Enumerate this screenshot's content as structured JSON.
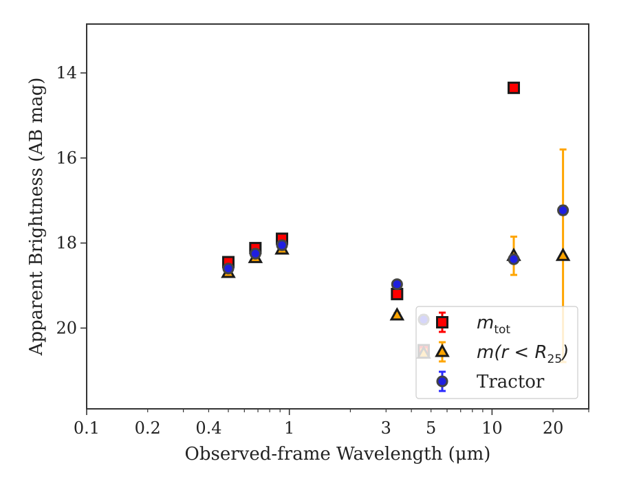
{
  "chart_data": {
    "type": "scatter",
    "xlabel": "Observed-frame Wavelength (μm)",
    "ylabel": "Apparent Brightness (AB mag)",
    "xscale": "log",
    "xlim": [
      0.1,
      30
    ],
    "ylim": [
      21.9,
      12.85
    ],
    "y_inverted": true,
    "x_ticks": [
      0.1,
      0.2,
      0.4,
      1,
      3,
      5,
      10,
      20
    ],
    "x_tick_labels": [
      "0.1",
      "0.2",
      "0.4",
      "1",
      "3",
      "5",
      "10",
      "20"
    ],
    "y_ticks": [
      14,
      16,
      18,
      20
    ],
    "y_tick_labels": [
      "14",
      "16",
      "18",
      "20"
    ],
    "grid": false,
    "legend_position": "lower-right",
    "series": [
      {
        "name": "m_tot",
        "legend_label": "m",
        "legend_sub": "tot",
        "marker": "square",
        "color": "#ff0000",
        "edge_color": "#1a1a1a",
        "error_color": "#ff0000",
        "x": [
          0.5,
          0.68,
          0.92,
          3.4,
          4.6,
          12.8
        ],
        "y": [
          18.45,
          18.12,
          17.9,
          19.2,
          20.52,
          14.35
        ],
        "yerr": [
          0.05,
          0.05,
          0.05,
          0.05,
          0.1,
          0.05
        ]
      },
      {
        "name": "m(r < R25)",
        "legend_label": "m(r < R",
        "legend_sub": "25",
        "legend_tail": ")",
        "marker": "triangle",
        "color": "#ffa500",
        "edge_color": "#1a1a1a",
        "error_color": "#ffa500",
        "x": [
          0.5,
          0.68,
          0.92,
          3.4,
          4.6,
          12.8,
          22.4
        ],
        "y": [
          18.7,
          18.35,
          18.15,
          19.7,
          20.6,
          18.3,
          18.3
        ],
        "yerr": [
          0.05,
          0.05,
          0.05,
          0.05,
          0.1,
          0.45,
          2.5
        ]
      },
      {
        "name": "Tractor",
        "legend_label": "Tractor",
        "marker": "circle",
        "color": "#1f1fe0",
        "edge_color": "#444444",
        "error_color": "#2a2aff",
        "x": [
          0.5,
          0.68,
          0.92,
          3.4,
          4.6,
          12.8,
          22.4
        ],
        "y": [
          18.6,
          18.25,
          18.05,
          18.97,
          19.8,
          18.38,
          17.23
        ],
        "yerr": [
          0.03,
          0.03,
          0.03,
          0.05,
          0.1,
          0.08,
          0.1
        ]
      }
    ]
  }
}
